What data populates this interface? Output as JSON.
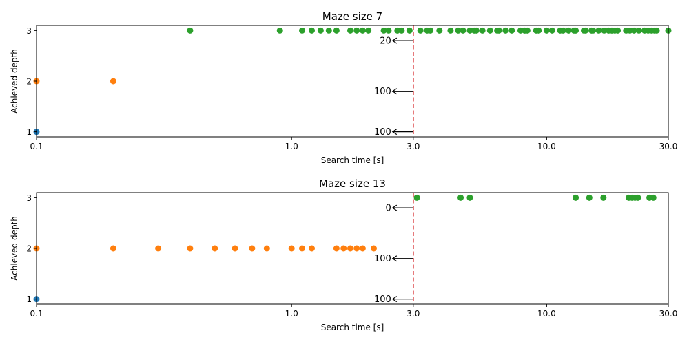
{
  "chart_data": [
    {
      "type": "scatter",
      "title": "Maze size 7",
      "xlabel": "Search time [s]",
      "ylabel": "Achieved depth",
      "xscale": "log",
      "xlim": [
        0.1,
        30.0
      ],
      "ylim": [
        0.9,
        3.1
      ],
      "xticks": [
        "0.1",
        "1.0",
        "3.0",
        "10.0",
        "30.0"
      ],
      "yticks": [
        "1",
        "2",
        "3"
      ],
      "grid": false,
      "colors": [
        "#1f77b4",
        "#ff7f0e",
        "#2ca02c"
      ],
      "threshold": {
        "x": 3.0,
        "color": "#d62728",
        "style": "dashed"
      },
      "annotations": [
        {
          "label": "20",
          "y": 2.8
        },
        {
          "label": "100",
          "y": 1.8
        },
        {
          "label": "100",
          "y": 1.0
        }
      ],
      "series": [
        {
          "color": "#1f77b4",
          "y": 1,
          "x": [
            0.1
          ]
        },
        {
          "color": "#ff7f0e",
          "y": 2,
          "x": [
            0.1,
            0.2
          ]
        },
        {
          "color": "#2ca02c",
          "y": 3,
          "x": [
            0.4,
            0.9,
            1.1,
            1.2,
            1.3,
            1.4,
            1.5,
            1.7,
            1.8,
            1.9,
            2.0,
            2.3,
            2.4,
            2.6,
            2.7,
            2.9,
            3.2,
            3.4,
            3.5,
            3.8,
            4.2,
            4.5,
            4.7,
            5.0,
            5.2,
            5.3,
            5.6,
            6.0,
            6.4,
            6.5,
            6.9,
            7.3,
            7.9,
            8.2,
            8.4,
            9.1,
            9.3,
            10.0,
            10.5,
            11.3,
            11.6,
            12.2,
            12.8,
            13.0,
            14.0,
            14.2,
            15.0,
            15.2,
            16.0,
            16.8,
            17.5,
            18.0,
            18.5,
            19.0,
            20.5,
            21.2,
            22.0,
            23.0,
            24.2,
            25.0,
            25.8,
            26.5,
            27.0,
            30.0
          ]
        }
      ]
    },
    {
      "type": "scatter",
      "title": "Maze size 13",
      "xlabel": "Search time [s]",
      "ylabel": "Achieved depth",
      "xscale": "log",
      "xlim": [
        0.1,
        30.0
      ],
      "ylim": [
        0.9,
        3.1
      ],
      "xticks": [
        "0.1",
        "1.0",
        "3.0",
        "10.0",
        "30.0"
      ],
      "yticks": [
        "1",
        "2",
        "3"
      ],
      "grid": false,
      "colors": [
        "#1f77b4",
        "#ff7f0e",
        "#2ca02c"
      ],
      "threshold": {
        "x": 3.0,
        "color": "#d62728",
        "style": "dashed"
      },
      "annotations": [
        {
          "label": "0",
          "y": 2.8
        },
        {
          "label": "100",
          "y": 1.8
        },
        {
          "label": "100",
          "y": 1.0
        }
      ],
      "series": [
        {
          "color": "#1f77b4",
          "y": 1,
          "x": [
            0.1
          ]
        },
        {
          "color": "#ff7f0e",
          "y": 2,
          "x": [
            0.1,
            0.2,
            0.3,
            0.4,
            0.5,
            0.6,
            0.7,
            0.8,
            1.0,
            1.1,
            1.2,
            1.5,
            1.6,
            1.7,
            1.8,
            1.9,
            2.1
          ]
        },
        {
          "color": "#2ca02c",
          "y": 3,
          "x": [
            3.1,
            4.6,
            5.0,
            13.0,
            14.7,
            16.7,
            21.0,
            21.6,
            22.2,
            22.8,
            25.3,
            26.2
          ]
        }
      ]
    }
  ]
}
